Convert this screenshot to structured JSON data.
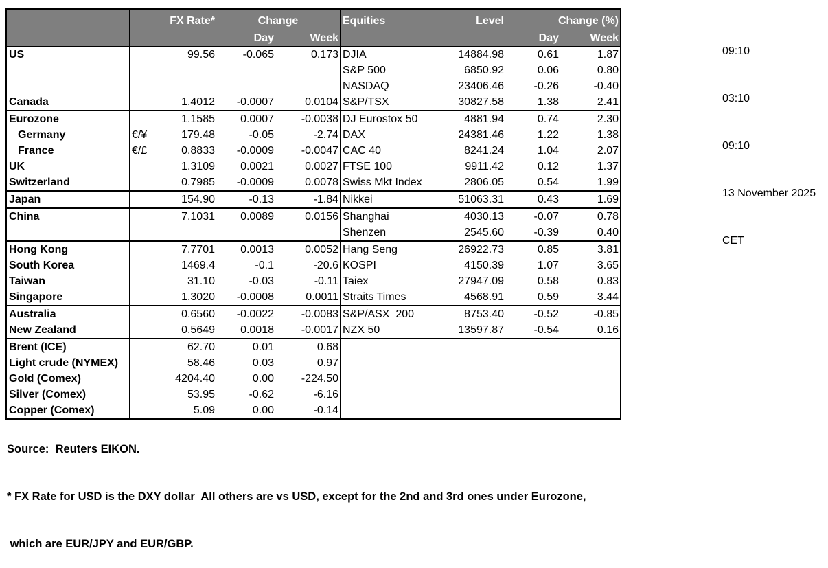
{
  "colors": {
    "header_bg": "#7f7f7f",
    "header_text": "#ffffff",
    "border": "#000000",
    "body_text": "#000000"
  },
  "header": {
    "fx_rate": "FX Rate*",
    "change": "Change",
    "day": "Day",
    "week": "Week",
    "equities": "Equities",
    "level": "Level",
    "change_pct": "Change (%)"
  },
  "rows": [
    {
      "label": "US",
      "pair": "",
      "fx_rate": "99.56",
      "fx_day": "-0.065",
      "fx_week": "0.173",
      "equity": "DJIA",
      "level": "14884.98",
      "eq_day": "0.61",
      "eq_week": "1.87"
    },
    {
      "label": "",
      "pair": "",
      "fx_rate": "",
      "fx_day": "",
      "fx_week": "",
      "equity": "S&P 500",
      "level": "6850.92",
      "eq_day": "0.06",
      "eq_week": "0.80"
    },
    {
      "label": "",
      "pair": "",
      "fx_rate": "",
      "fx_day": "",
      "fx_week": "",
      "equity": "NASDAQ",
      "level": "23406.46",
      "eq_day": "-0.26",
      "eq_week": "-0.40"
    },
    {
      "label": "Canada",
      "pair": "",
      "fx_rate": "1.4012",
      "fx_day": "-0.0007",
      "fx_week": "0.0104",
      "equity": "S&P/TSX",
      "level": "30827.58",
      "eq_day": "1.38",
      "eq_week": "2.41",
      "group_end": true
    },
    {
      "label": "Eurozone",
      "pair": "",
      "fx_rate": "1.1585",
      "fx_day": "0.0007",
      "fx_week": "-0.0038",
      "equity": "DJ Eurostox 50",
      "level": "4881.94",
      "eq_day": "0.74",
      "eq_week": "2.30"
    },
    {
      "label": "Germany",
      "indent": true,
      "pair": "€/¥",
      "fx_rate": "179.48",
      "fx_day": "-0.05",
      "fx_week": "-2.74",
      "equity": "DAX",
      "level": "24381.46",
      "eq_day": "1.22",
      "eq_week": "1.38"
    },
    {
      "label": "France",
      "indent": true,
      "pair": "€/£",
      "fx_rate": "0.8833",
      "fx_day": "-0.0009",
      "fx_week": "-0.0047",
      "equity": "CAC 40",
      "level": "8241.24",
      "eq_day": "1.04",
      "eq_week": "2.07"
    },
    {
      "label": "UK",
      "pair": "",
      "fx_rate": "1.3109",
      "fx_day": "0.0021",
      "fx_week": "0.0027",
      "equity": "FTSE 100",
      "level": "9911.42",
      "eq_day": "0.12",
      "eq_week": "1.37"
    },
    {
      "label": "Switzerland",
      "pair": "",
      "fx_rate": "0.7985",
      "fx_day": "-0.0009",
      "fx_week": "0.0078",
      "equity": "Swiss Mkt Index",
      "level": "2806.05",
      "eq_day": "0.54",
      "eq_week": "1.99",
      "group_end": true
    },
    {
      "label": "Japan",
      "pair": "",
      "fx_rate": "154.90",
      "fx_day": "-0.13",
      "fx_week": "-1.84",
      "equity": "Nikkei",
      "level": "51063.31",
      "eq_day": "0.43",
      "eq_week": "1.69",
      "group_end": true
    },
    {
      "label": "China",
      "pair": "",
      "fx_rate": "7.1031",
      "fx_day": "0.0089",
      "fx_week": "0.0156",
      "equity": "Shanghai",
      "level": "4030.13",
      "eq_day": "-0.07",
      "eq_week": "0.78"
    },
    {
      "label": "",
      "pair": "",
      "fx_rate": "",
      "fx_day": "",
      "fx_week": "",
      "equity": "Shenzen",
      "level": "2545.60",
      "eq_day": "-0.39",
      "eq_week": "0.40",
      "group_end": true
    },
    {
      "label": "Hong Kong",
      "pair": "",
      "fx_rate": "7.7701",
      "fx_day": "0.0013",
      "fx_week": "0.0052",
      "equity": "Hang Seng",
      "level": "26922.73",
      "eq_day": "0.85",
      "eq_week": "3.81"
    },
    {
      "label": "South Korea",
      "pair": "",
      "fx_rate": "1469.4",
      "fx_day": "-0.1",
      "fx_week": "-20.6",
      "equity": "KOSPI",
      "level": "4150.39",
      "eq_day": "1.07",
      "eq_week": "3.65"
    },
    {
      "label": "Taiwan",
      "pair": "",
      "fx_rate": "31.10",
      "fx_day": "-0.03",
      "fx_week": "-0.11",
      "equity": "Taiex",
      "level": "27947.09",
      "eq_day": "0.58",
      "eq_week": "0.83"
    },
    {
      "label": "Singapore",
      "pair": "",
      "fx_rate": "1.3020",
      "fx_day": "-0.0008",
      "fx_week": "0.0011",
      "equity": "Straits Times",
      "level": "4568.91",
      "eq_day": "0.59",
      "eq_week": "3.44",
      "group_end": true
    },
    {
      "label": "Australia",
      "pair": "",
      "fx_rate": "0.6560",
      "fx_day": "-0.0022",
      "fx_week": "-0.0083",
      "equity": "S&P/ASX  200",
      "level": "8753.40",
      "eq_day": "-0.52",
      "eq_week": "-0.85"
    },
    {
      "label": "New Zealand",
      "pair": "",
      "fx_rate": "0.5649",
      "fx_day": "0.0018",
      "fx_week": "-0.0017",
      "equity": "NZX 50",
      "level": "13597.87",
      "eq_day": "-0.54",
      "eq_week": "0.16",
      "group_end": true
    },
    {
      "label": "Brent (ICE)",
      "pair": "",
      "fx_rate": "62.70",
      "fx_day": "0.01",
      "fx_week": "0.68",
      "equity": "",
      "level": "",
      "eq_day": "",
      "eq_week": ""
    },
    {
      "label": "Light crude (NYMEX)",
      "pair": "",
      "fx_rate": "58.46",
      "fx_day": "0.03",
      "fx_week": "0.97",
      "equity": "",
      "level": "",
      "eq_day": "",
      "eq_week": ""
    },
    {
      "label": "Gold (Comex)",
      "pair": "",
      "fx_rate": "4204.40",
      "fx_day": "0.00",
      "fx_week": "-224.50",
      "equity": "",
      "level": "",
      "eq_day": "",
      "eq_week": ""
    },
    {
      "label": "Silver (Comex)",
      "pair": "",
      "fx_rate": "53.95",
      "fx_day": "-0.62",
      "fx_week": "-6.16",
      "equity": "",
      "level": "",
      "eq_day": "",
      "eq_week": ""
    },
    {
      "label": "Copper (Comex)",
      "pair": "",
      "fx_rate": "5.09",
      "fx_day": "0.00",
      "fx_week": "-0.14",
      "equity": "",
      "level": "",
      "eq_day": "",
      "eq_week": ""
    }
  ],
  "timestamps": [
    "09:10",
    "03:10",
    "09:10",
    "13 November 2025",
    "CET"
  ],
  "footer": {
    "source": "Source:  Reuters EIKON.",
    "note1": "* FX Rate for USD is the DXY dollar  All others are vs USD, except for the 2nd and 3rd ones under Eurozone,",
    "note2": " which are EUR/JPY and EUR/GBP."
  }
}
